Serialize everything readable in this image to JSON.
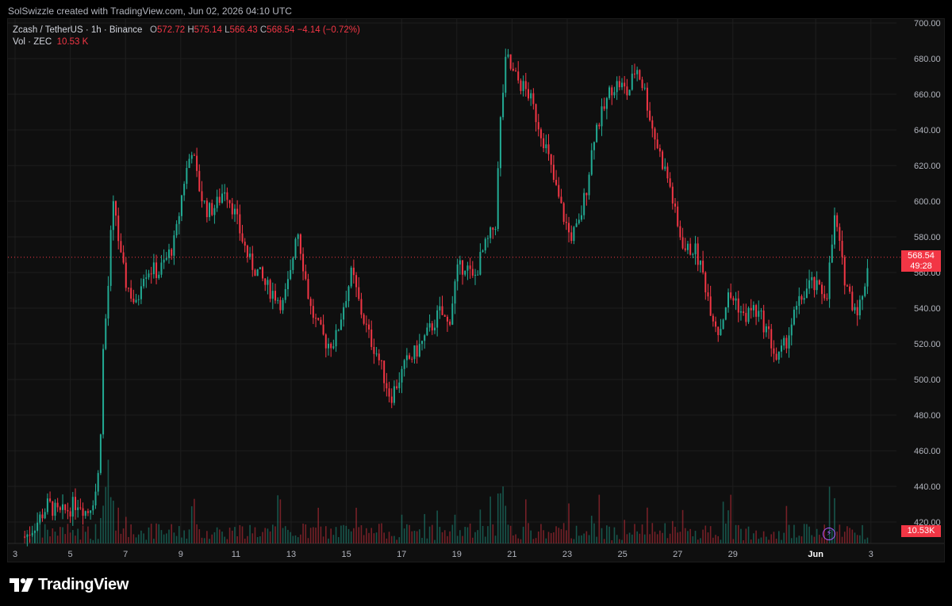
{
  "credit": "SolSwizzle created with TradingView.com, Jun 02, 2026 04:10 UTC",
  "legend": {
    "symbol": "Zcash / TetherUS · 1h · Binance",
    "o_label": "O",
    "o": "572.72",
    "h_label": "H",
    "h": "575.14",
    "l_label": "L",
    "l": "566.43",
    "c_label": "C",
    "c": "568.54",
    "change": "−4.14 (−0.72%)",
    "vol_label": "Vol · ZEC",
    "vol": "10.53 K"
  },
  "price_tag": {
    "price": "568.54",
    "countdown": "49:28"
  },
  "vol_tag": "10.53K",
  "brand": "TradingView",
  "icons": {
    "logo": "tradingview-logo-icon",
    "bolt": "lightning-icon"
  },
  "colors": {
    "up": "#22ab94",
    "down": "#f23645",
    "background": "#0f0f0f",
    "grid": "#1e1e1e"
  },
  "chart_data": {
    "type": "candlestick",
    "symbol": "Zcash / TetherUS",
    "interval": "1h",
    "exchange": "Binance",
    "ylim": [
      410,
      700
    ],
    "yticks": [
      "700.00",
      "680.00",
      "660.00",
      "640.00",
      "620.00",
      "600.00",
      "580.00",
      "560.00",
      "540.00",
      "520.00",
      "500.00",
      "480.00",
      "460.00",
      "440.00",
      "420.00"
    ],
    "xticks": [
      "3",
      "5",
      "7",
      "9",
      "11",
      "13",
      "15",
      "17",
      "19",
      "21",
      "23",
      "25",
      "27",
      "29",
      "Jun",
      "3"
    ],
    "last_price": 568.54,
    "price_path": [
      [
        3,
        410
      ],
      [
        3.4,
        412
      ],
      [
        3.8,
        420
      ],
      [
        4.2,
        430
      ],
      [
        4.6,
        424
      ],
      [
        5,
        428
      ],
      [
        5.3,
        432
      ],
      [
        5.6,
        425
      ],
      [
        5.9,
        436
      ],
      [
        6.05,
        450
      ],
      [
        6.2,
        520
      ],
      [
        6.35,
        545
      ],
      [
        6.5,
        590
      ],
      [
        6.6,
        600
      ],
      [
        6.8,
        570
      ],
      [
        7,
        555
      ],
      [
        7.2,
        548
      ],
      [
        7.4,
        540
      ],
      [
        7.6,
        560
      ],
      [
        7.9,
        562
      ],
      [
        8.2,
        560
      ],
      [
        8.5,
        568
      ],
      [
        8.8,
        578
      ],
      [
        9.1,
        610
      ],
      [
        9.4,
        630
      ],
      [
        9.6,
        612
      ],
      [
        9.8,
        600
      ],
      [
        10,
        594
      ],
      [
        10.3,
        598
      ],
      [
        10.6,
        608
      ],
      [
        10.9,
        596
      ],
      [
        11.2,
        580
      ],
      [
        11.5,
        566
      ],
      [
        11.8,
        560
      ],
      [
        12.1,
        552
      ],
      [
        12.4,
        548
      ],
      [
        12.7,
        542
      ],
      [
        13,
        560
      ],
      [
        13.2,
        588
      ],
      [
        13.4,
        568
      ],
      [
        13.7,
        540
      ],
      [
        14,
        528
      ],
      [
        14.3,
        520
      ],
      [
        14.6,
        522
      ],
      [
        14.9,
        542
      ],
      [
        15.2,
        560
      ],
      [
        15.5,
        540
      ],
      [
        15.8,
        525
      ],
      [
        16.1,
        515
      ],
      [
        16.4,
        500
      ],
      [
        16.6,
        490
      ],
      [
        16.9,
        500
      ],
      [
        17.2,
        510
      ],
      [
        17.5,
        515
      ],
      [
        17.8,
        522
      ],
      [
        18.1,
        530
      ],
      [
        18.4,
        538
      ],
      [
        18.7,
        530
      ],
      [
        19,
        560
      ],
      [
        19.3,
        565
      ],
      [
        19.6,
        555
      ],
      [
        19.9,
        570
      ],
      [
        20.2,
        580
      ],
      [
        20.4,
        588
      ],
      [
        20.6,
        650
      ],
      [
        20.8,
        682
      ],
      [
        21,
        672
      ],
      [
        21.3,
        666
      ],
      [
        21.6,
        660
      ],
      [
        21.9,
        646
      ],
      [
        22.2,
        632
      ],
      [
        22.5,
        612
      ],
      [
        22.8,
        595
      ],
      [
        23.1,
        580
      ],
      [
        23.4,
        585
      ],
      [
        23.7,
        608
      ],
      [
        24,
        640
      ],
      [
        24.3,
        650
      ],
      [
        24.6,
        664
      ],
      [
        24.9,
        666
      ],
      [
        25.2,
        660
      ],
      [
        25.5,
        676
      ],
      [
        25.8,
        662
      ],
      [
        26.1,
        640
      ],
      [
        26.4,
        624
      ],
      [
        26.7,
        610
      ],
      [
        27,
        585
      ],
      [
        27.3,
        572
      ],
      [
        27.6,
        574
      ],
      [
        27.9,
        560
      ],
      [
        28.2,
        540
      ],
      [
        28.5,
        526
      ],
      [
        28.8,
        546
      ],
      [
        29.1,
        545
      ],
      [
        29.4,
        534
      ],
      [
        29.7,
        540
      ],
      [
        30,
        535
      ],
      [
        30.3,
        525
      ],
      [
        30.6,
        510
      ],
      [
        30.9,
        520
      ],
      [
        31.2,
        535
      ],
      [
        31.5,
        546
      ],
      [
        31.8,
        554
      ],
      [
        32.1,
        550
      ],
      [
        32.4,
        548
      ],
      [
        32.7,
        592
      ],
      [
        33,
        560
      ],
      [
        33.3,
        544
      ],
      [
        33.5,
        540
      ],
      [
        33.7,
        545
      ],
      [
        33.9,
        568.54
      ]
    ]
  }
}
